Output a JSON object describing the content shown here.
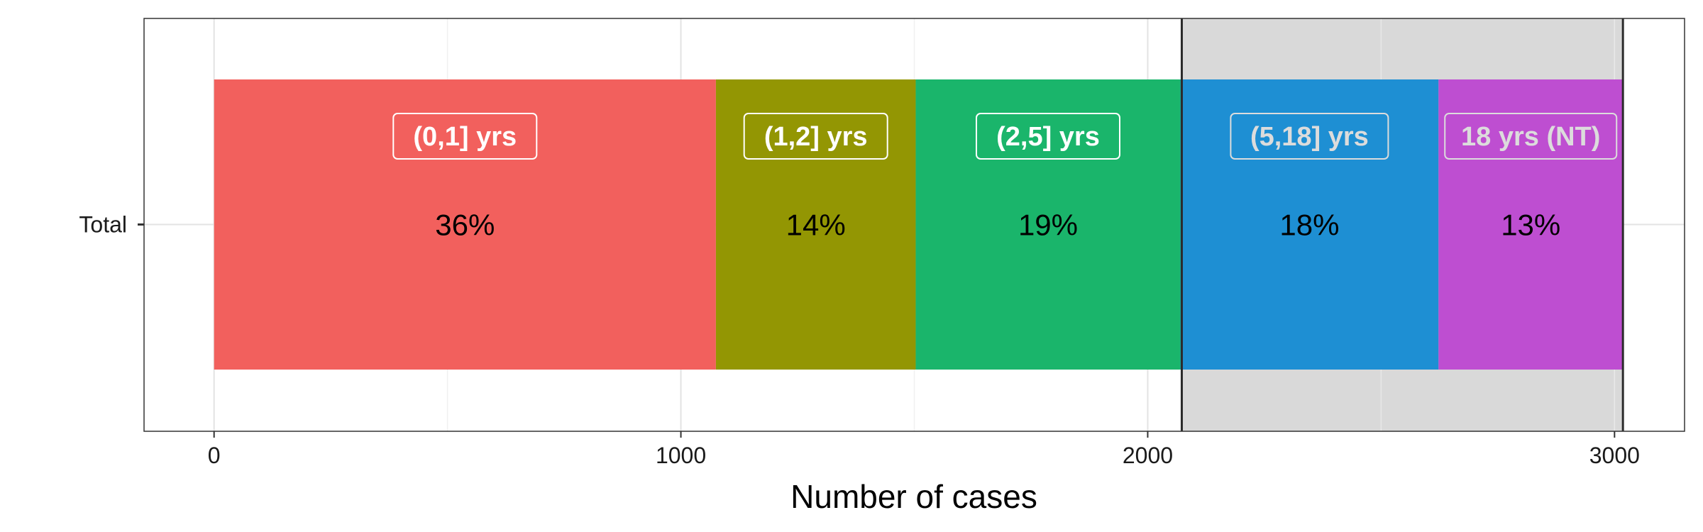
{
  "chart_data": {
    "type": "bar",
    "orientation": "horizontal",
    "stacked": true,
    "y_categories": [
      "Total"
    ],
    "series": [
      {
        "name": "(0,1] yrs",
        "value": 1075,
        "percent_label": "36%",
        "color": "#F2605D",
        "label_color": "#ffffff"
      },
      {
        "name": "(1,2] yrs",
        "value": 428,
        "percent_label": "14%",
        "color": "#939603",
        "label_color": "#ffffff"
      },
      {
        "name": "(2,5] yrs",
        "value": 567,
        "percent_label": "19%",
        "color": "#1AB56B",
        "label_color": "#ffffff"
      },
      {
        "name": "(5,18] yrs",
        "value": 553,
        "percent_label": "18%",
        "color": "#1E8FD3",
        "label_color": "#dcdcdc"
      },
      {
        "name": "18 yrs (NT)",
        "value": 395,
        "percent_label": "13%",
        "color": "#BE4ED1",
        "label_color": "#dcdcdc"
      }
    ],
    "highlight_region": {
      "x_start": 2073,
      "x_end": 3018,
      "color": "#d9d9d9"
    },
    "xlabel": "Number of cases",
    "ylabel": "",
    "xlim": [
      -150,
      3150
    ],
    "xticks": [
      0,
      1000,
      2000,
      3000
    ],
    "x_tick_labels": [
      "0",
      "1000",
      "2000",
      "3000"
    ],
    "minor_xticks": [
      500,
      1500,
      2500
    ],
    "grid": true,
    "legend": "none"
  }
}
